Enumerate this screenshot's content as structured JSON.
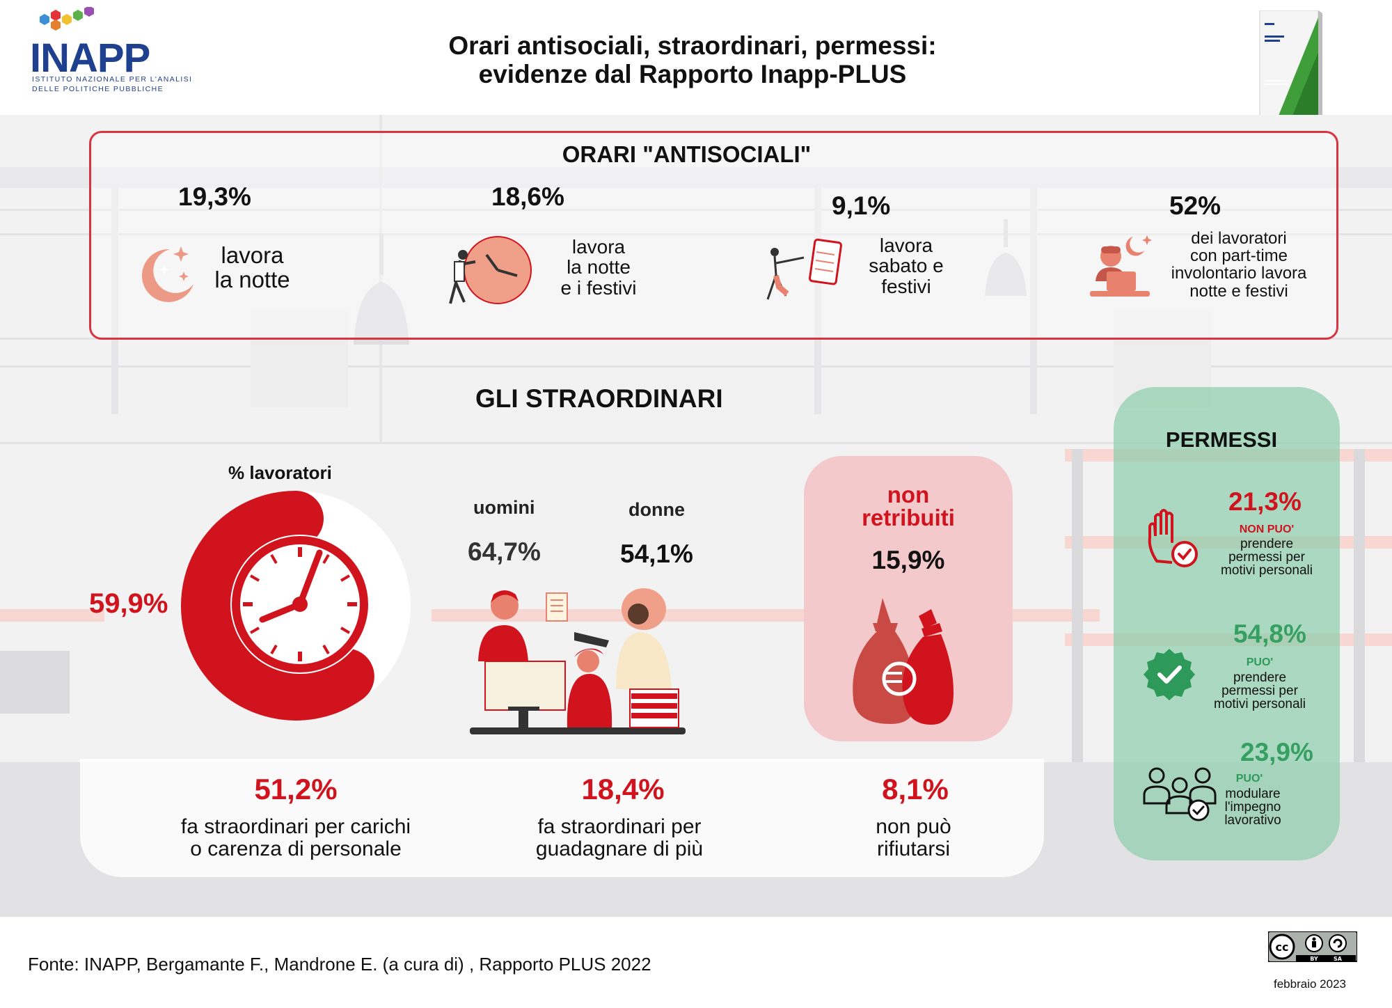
{
  "header": {
    "logo_name": "INAPP",
    "logo_sub_line1": "ISTITUTO NAZIONALE PER L'ANALISI",
    "logo_sub_line2": "DELLE POLITICHE PUBBLICHE",
    "title_line1": "Orari antisociali, straordinari, permessi:",
    "title_line2": "evidenze dal Rapporto Inapp-PLUS",
    "book_icon": "report-book-icon"
  },
  "antisociali": {
    "title": "ORARI \"ANTISOCIALI\"",
    "items": [
      {
        "pct": "19,3%",
        "line1": "lavora",
        "line2": "la notte",
        "icon": "moon-stars-icon"
      },
      {
        "pct": "18,6%",
        "line1": "lavora",
        "line2": "la notte",
        "line3": "e i festivi",
        "icon": "clock-worker-icon"
      },
      {
        "pct": "9,1%",
        "line1": "lavora",
        "line2": "sabato e",
        "line3": "festivi",
        "icon": "calendar-worker-icon"
      },
      {
        "pct": "52%",
        "line1": "dei lavoratori",
        "line2": "con part-time",
        "line3": "involontario lavora",
        "line4": "notte e festivi",
        "icon": "laptop-night-worker-icon"
      }
    ]
  },
  "straordinari": {
    "title": "GLI STRAORDINARI",
    "pct_label": "% lavoratori",
    "total_pct": "59,9%",
    "total_value": 59.9,
    "uomini_label": "uomini",
    "uomini_pct": "64,7%",
    "donne_label": "donne",
    "donne_pct": "54,1%",
    "non_retribuiti_line1": "non",
    "non_retribuiti_line2": "retribuiti",
    "non_retribuiti_pct": "15,9%",
    "reasons": [
      {
        "pct": "51,2%",
        "line1": "fa straordinari per carichi",
        "line2": "o carenza di personale"
      },
      {
        "pct": "18,4%",
        "line1": "fa straordinari per",
        "line2": "guadagnare di più"
      },
      {
        "pct": "8,1%",
        "line1": "non può",
        "line2": "rifiutarsi"
      }
    ]
  },
  "permessi": {
    "title": "PERMESSI",
    "items": [
      {
        "pct": "21,3%",
        "keyword": "NON PUO'",
        "line1": "prendere",
        "line2": "permessi per",
        "line3": "motivi personali",
        "icon": "hand-stop-check-icon"
      },
      {
        "pct": "54,8%",
        "keyword": "PUO'",
        "line1": "prendere",
        "line2": "permessi per",
        "line3": "motivi personali",
        "icon": "verified-badge-icon"
      },
      {
        "pct": "23,9%",
        "keyword": "PUO'",
        "line1": "modulare",
        "line2": "l'impegno",
        "line3": "lavorativo",
        "icon": "team-check-icon"
      }
    ]
  },
  "footer": {
    "source": "Fonte: INAPP, Bergamante F., Mandrone E. (a cura di) , Rapporto PLUS 2022",
    "license_by": "BY",
    "license_sa": "SA",
    "date": "febbraio 2023"
  },
  "colors": {
    "red": "#d0131d",
    "salmon": "#e9836f",
    "green": "#36a062",
    "navy": "#1f3f8f"
  }
}
